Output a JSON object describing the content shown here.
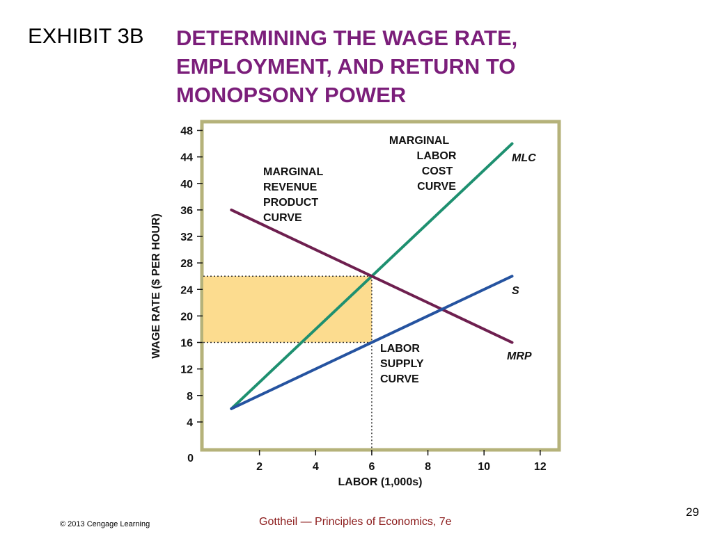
{
  "slide": {
    "exhibit_label": "EXHIBIT 3B",
    "title_lines": [
      "DETERMINING THE WAGE RATE,",
      "EMPLOYMENT, AND RETURN TO",
      "MONOPSONY POWER"
    ],
    "title_color": "#7B1E7A",
    "footer_copyright": "© 2013 Cengage Learning",
    "footer_book": "Gottheil — Principles of Economics, 7e",
    "footer_book_color": "#8B1A1A",
    "page_number": "29"
  },
  "chart_data": {
    "type": "line",
    "title": "",
    "xlabel": "LABOR (1,000s)",
    "ylabel": "WAGE RATE ($ PER HOUR)",
    "xlim": [
      0,
      12.6
    ],
    "ylim": [
      0,
      49
    ],
    "x_ticks": [
      2,
      4,
      6,
      8,
      10,
      12
    ],
    "y_ticks": [
      4,
      8,
      12,
      16,
      20,
      24,
      28,
      32,
      36,
      40,
      44,
      48
    ],
    "origin_label": "0",
    "series": [
      {
        "name": "MLC",
        "color": "#1E9070",
        "points": [
          [
            1,
            6
          ],
          [
            11,
            46
          ]
        ],
        "curve_label": [
          "MARGINAL",
          "LABOR",
          "COST",
          "CURVE"
        ]
      },
      {
        "name": "MRP",
        "color": "#6E1F4F",
        "points": [
          [
            1,
            36
          ],
          [
            11,
            16
          ]
        ],
        "curve_label": [
          "MARGINAL",
          "REVENUE",
          "PRODUCT",
          "CURVE"
        ]
      },
      {
        "name": "S",
        "color": "#2553A0",
        "points": [
          [
            1,
            6
          ],
          [
            11,
            26
          ]
        ],
        "curve_label": [
          "LABOR",
          "SUPPLY",
          "CURVE"
        ]
      }
    ],
    "shaded_region": {
      "x": [
        0,
        6
      ],
      "y": [
        16,
        26
      ],
      "color": "#FCDC8F"
    },
    "reference_lines": {
      "x": 6,
      "y_values": [
        26,
        16
      ]
    },
    "frame_color": "#B5B27A"
  }
}
